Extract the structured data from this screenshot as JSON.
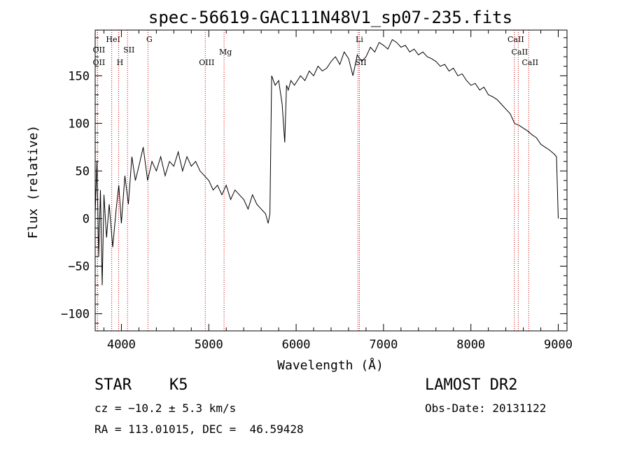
{
  "title": "spec-56619-GAC111N48V1_sp07-235.fits",
  "info": {
    "class": "STAR",
    "subclass": "K5",
    "cz": "cz = −10.2 ± 5.3 km/s",
    "radec": "RA = 113.01015, DEC =  46.59428",
    "survey": "LAMOST DR2",
    "obsdate": "Obs-Date: 20131122"
  },
  "chart_data": {
    "type": "line",
    "title": "spec-56619-GAC111N48V1_sp07-235.fits",
    "xlabel": "Wavelength (Å)",
    "ylabel": "Flux (relative)",
    "xlim": [
      3700,
      9100
    ],
    "ylim": [
      -118,
      198
    ],
    "xticks": [
      4000,
      5000,
      6000,
      7000,
      8000,
      9000
    ],
    "yticks": [
      -100,
      -50,
      0,
      50,
      100,
      150
    ],
    "ytick_labels": [
      "−100",
      "−50",
      "0",
      "50",
      "100",
      "150"
    ],
    "line_color": "#000000",
    "marker_color": "#cc0000",
    "series": [
      {
        "x": [
          3700,
          3720,
          3740,
          3760,
          3780,
          3800,
          3830,
          3860,
          3900,
          3940,
          3970,
          4000,
          4040,
          4080,
          4120,
          4160,
          4200,
          4250,
          4300,
          4350,
          4400,
          4450,
          4500,
          4550,
          4600,
          4650,
          4700,
          4750,
          4800,
          4850,
          4900,
          4950,
          5000,
          5050,
          5100,
          5150,
          5200,
          5250,
          5300,
          5350,
          5400,
          5450,
          5500,
          5550,
          5600,
          5650,
          5680,
          5700,
          5720,
          5760,
          5800,
          5840,
          5870,
          5890,
          5910,
          5940,
          5980,
          6050,
          6100,
          6150,
          6200,
          6250,
          6300,
          6350,
          6400,
          6450,
          6500,
          6550,
          6600,
          6650,
          6700,
          6750,
          6800,
          6850,
          6900,
          6950,
          7000,
          7050,
          7100,
          7150,
          7200,
          7250,
          7300,
          7350,
          7400,
          7450,
          7500,
          7550,
          7600,
          7650,
          7700,
          7750,
          7800,
          7850,
          7900,
          7950,
          8000,
          8050,
          8100,
          8150,
          8200,
          8250,
          8300,
          8350,
          8400,
          8450,
          8500,
          8550,
          8600,
          8650,
          8700,
          8750,
          8800,
          8850,
          8900,
          8950,
          8980,
          9000
        ],
        "y": [
          5,
          60,
          -40,
          30,
          -70,
          25,
          -20,
          15,
          -30,
          10,
          35,
          -5,
          45,
          15,
          65,
          40,
          55,
          75,
          40,
          60,
          50,
          65,
          45,
          60,
          55,
          70,
          50,
          65,
          55,
          60,
          50,
          45,
          40,
          30,
          35,
          25,
          35,
          20,
          30,
          25,
          20,
          10,
          25,
          15,
          10,
          5,
          -5,
          5,
          150,
          140,
          145,
          120,
          80,
          140,
          135,
          145,
          140,
          150,
          145,
          155,
          150,
          160,
          155,
          158,
          165,
          170,
          162,
          175,
          168,
          150,
          172,
          165,
          170,
          180,
          175,
          185,
          182,
          178,
          188,
          185,
          180,
          182,
          175,
          178,
          172,
          175,
          170,
          168,
          165,
          160,
          162,
          155,
          158,
          150,
          152,
          145,
          140,
          142,
          135,
          138,
          130,
          128,
          125,
          120,
          115,
          110,
          100,
          98,
          95,
          92,
          88,
          85,
          78,
          75,
          72,
          68,
          65,
          0
        ]
      }
    ],
    "line_markers": [
      {
        "label": "OII",
        "x": 3727
      },
      {
        "label": "HeI",
        "x": 3889
      },
      {
        "label": "OII",
        "x": 3727
      },
      {
        "label": "H",
        "x": 3968
      },
      {
        "label": "SII",
        "x": 4070
      },
      {
        "label": "G",
        "x": 4304
      },
      {
        "label": "OIII",
        "x": 4960
      },
      {
        "label": "Mg",
        "x": 5175
      },
      {
        "label": "Li",
        "x": 6708
      },
      {
        "label": "SII",
        "x": 6724
      },
      {
        "label": "CaII",
        "x": 8498
      },
      {
        "label": "CaII",
        "x": 8542
      },
      {
        "label": "CaII",
        "x": 8662
      }
    ]
  }
}
